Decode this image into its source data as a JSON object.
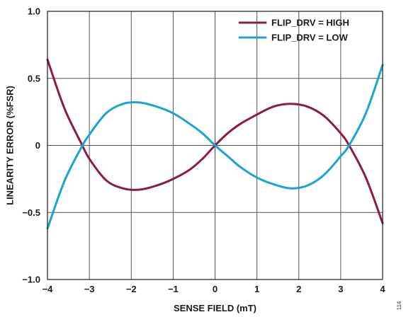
{
  "chart_data": {
    "type": "line",
    "xlabel": "SENSE FIELD (mT)",
    "ylabel": "LINEARITY ERROR (%FSR)",
    "xlim": [
      -4,
      4
    ],
    "ylim": [
      -1.0,
      1.0
    ],
    "x_ticks": [
      -4,
      -3,
      -2,
      -1,
      0,
      1,
      2,
      3,
      4
    ],
    "x_tick_labels": [
      "−4",
      "−3",
      "−2",
      "−1",
      "0",
      "1",
      "2",
      "3",
      "4"
    ],
    "y_ticks": [
      -1.0,
      -0.5,
      0,
      0.5,
      1.0
    ],
    "y_tick_labels": [
      "−1.0",
      "−0.5",
      "0",
      "0.5",
      "1.0"
    ],
    "grid": true,
    "legend_position": "top-right",
    "side_note": "114",
    "series": [
      {
        "name": "FLIP_DRV = HIGH",
        "color": "#8c1d40",
        "x": [
          -4.0,
          -3.6,
          -3.2,
          -3.0,
          -2.6,
          -2.2,
          -1.8,
          -1.4,
          -1.0,
          -0.6,
          -0.3,
          0.0,
          0.3,
          0.6,
          1.0,
          1.4,
          1.8,
          2.2,
          2.6,
          3.0,
          3.2,
          3.6,
          4.0
        ],
        "y": [
          0.64,
          0.28,
          0.02,
          -0.1,
          -0.26,
          -0.32,
          -0.33,
          -0.3,
          -0.25,
          -0.18,
          -0.1,
          0.0,
          0.09,
          0.16,
          0.23,
          0.29,
          0.31,
          0.29,
          0.22,
          0.09,
          0.0,
          -0.24,
          -0.58
        ]
      },
      {
        "name": "FLIP_DRV = LOW",
        "color": "#1ba3d6",
        "x": [
          -4.0,
          -3.6,
          -3.2,
          -3.0,
          -2.6,
          -2.2,
          -1.8,
          -1.4,
          -1.0,
          -0.6,
          -0.3,
          0.0,
          0.3,
          0.6,
          1.0,
          1.4,
          1.8,
          2.2,
          2.6,
          3.0,
          3.2,
          3.6,
          4.0
        ],
        "y": [
          -0.62,
          -0.27,
          -0.02,
          0.08,
          0.24,
          0.31,
          0.32,
          0.29,
          0.24,
          0.16,
          0.09,
          0.0,
          -0.08,
          -0.16,
          -0.24,
          -0.29,
          -0.32,
          -0.3,
          -0.22,
          -0.08,
          0.0,
          0.24,
          0.6
        ]
      }
    ]
  }
}
